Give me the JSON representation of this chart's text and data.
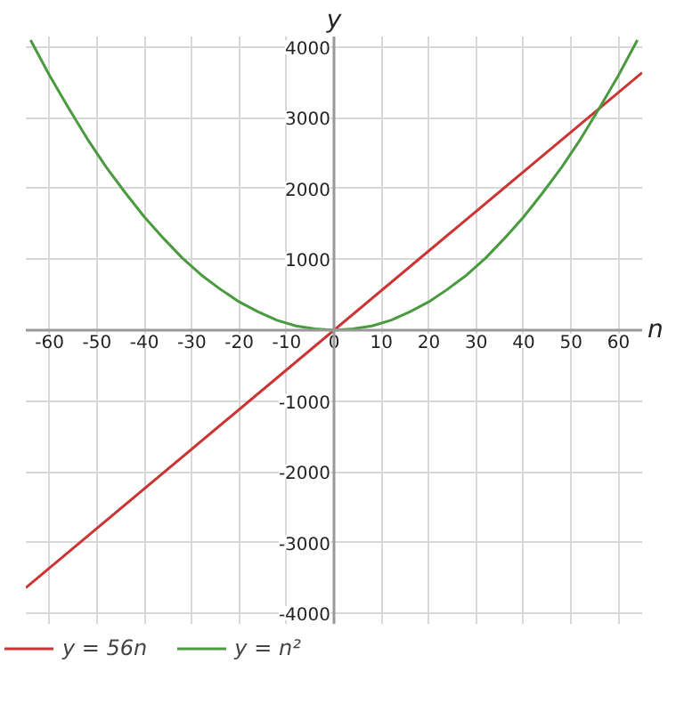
{
  "chart_data": {
    "type": "line",
    "xlabel": "n",
    "ylabel": "y",
    "xlim": [
      -65,
      65
    ],
    "ylim": [
      -4150,
      4150
    ],
    "xticks": [
      -60,
      -50,
      -40,
      -30,
      -20,
      -10,
      0,
      10,
      20,
      30,
      40,
      50,
      60
    ],
    "yticks": [
      -4000,
      -3000,
      -2000,
      -1000,
      1000,
      2000,
      3000,
      4000
    ],
    "grid": true,
    "legend": "bottom",
    "series": [
      {
        "name": "y = 56n",
        "color": "#cc3333",
        "x": [
          -65,
          65
        ],
        "values": [
          -3640,
          3640
        ]
      },
      {
        "name": "y = n²",
        "color": "#4a9a3f",
        "x": [
          -64,
          -60,
          -56,
          -52,
          -48,
          -44,
          -40,
          -36,
          -32,
          -28,
          -24,
          -20,
          -16,
          -12,
          -8,
          -4,
          0,
          4,
          8,
          12,
          16,
          20,
          24,
          28,
          32,
          36,
          40,
          44,
          48,
          52,
          56,
          60,
          64
        ],
        "values": [
          4100,
          3600,
          3140,
          2700,
          2300,
          1940,
          1600,
          1300,
          1020,
          780,
          580,
          400,
          260,
          140,
          60,
          20,
          0,
          20,
          60,
          140,
          260,
          400,
          580,
          780,
          1020,
          1300,
          1600,
          1940,
          2300,
          2700,
          3140,
          3600,
          4100
        ]
      }
    ]
  }
}
